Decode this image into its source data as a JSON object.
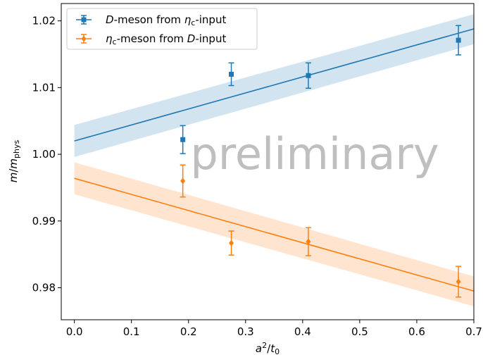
{
  "chart_data": {
    "type": "scatter",
    "xlabel": "a²/t₀",
    "ylabel": "m/m_phys",
    "xlim": [
      -0.023,
      0.7
    ],
    "ylim": [
      0.9752,
      1.0226
    ],
    "xticks": [
      0.0,
      0.1,
      0.2,
      0.3,
      0.4,
      0.5,
      0.6,
      0.7
    ],
    "xtick_labels": [
      "0.0",
      "0.1",
      "0.2",
      "0.3",
      "0.4",
      "0.5",
      "0.6",
      "0.7"
    ],
    "yticks": [
      0.98,
      0.99,
      1.0,
      1.01,
      1.02
    ],
    "ytick_labels": [
      "0.98",
      "0.99",
      "1.00",
      "1.01",
      "1.02"
    ],
    "grid": false,
    "legend_position": "top-left",
    "watermark": "preliminary",
    "series": [
      {
        "name_parts": [
          {
            "t": "D",
            "italic": true
          },
          {
            "t": "-meson from "
          },
          {
            "t": "η",
            "italic": true
          },
          {
            "t": "c",
            "sub": true
          },
          {
            "t": "-input"
          }
        ],
        "color": "#1f77b4",
        "marker": "square",
        "x": [
          0.19,
          0.275,
          0.41,
          0.673
        ],
        "y": [
          1.0022,
          1.012,
          1.0118,
          1.0171
        ],
        "yerr": [
          0.0021,
          0.0017,
          0.0019,
          0.0022
        ],
        "fit_line": {
          "x": [
            0.0,
            0.7
          ],
          "y": [
            1.002,
            1.0188
          ]
        },
        "band": {
          "x": [
            0.0,
            0.7
          ],
          "lower": [
            0.9996,
            1.0165
          ],
          "upper": [
            1.0044,
            1.021
          ]
        }
      },
      {
        "name_parts": [
          {
            "t": "η",
            "italic": true
          },
          {
            "t": "c",
            "sub": true
          },
          {
            "t": "-meson from "
          },
          {
            "t": "D",
            "italic": true
          },
          {
            "t": "-input"
          }
        ],
        "color": "#ff7f0e",
        "marker": "diamond",
        "x": [
          0.19,
          0.275,
          0.41,
          0.673
        ],
        "y": [
          0.996,
          0.9867,
          0.9869,
          0.9809
        ],
        "yerr": [
          0.0024,
          0.0018,
          0.0021,
          0.0023
        ],
        "fit_line": {
          "x": [
            0.0,
            0.7
          ],
          "y": [
            0.9964,
            0.9795
          ]
        },
        "band": {
          "x": [
            0.0,
            0.7
          ],
          "lower": [
            0.994,
            0.9772
          ],
          "upper": [
            0.9988,
            0.9817
          ]
        }
      }
    ]
  }
}
